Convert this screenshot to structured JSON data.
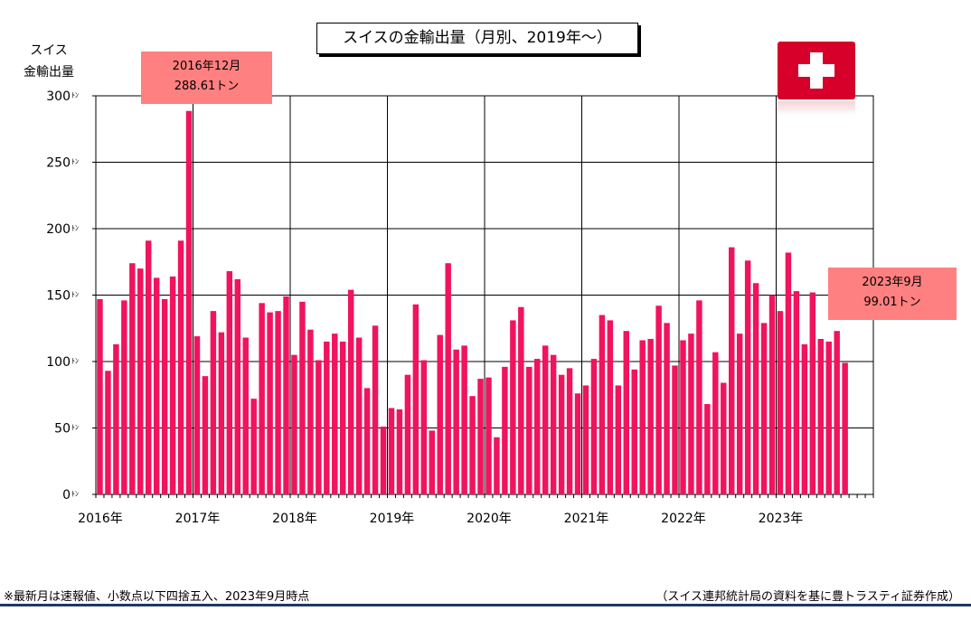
{
  "title": "スイスの金輸出量（月別、2019年～）",
  "ylabel_lines": [
    "スイス",
    "金輸出量"
  ],
  "callouts": {
    "left": {
      "line1": "2016年12月",
      "line2": "288.61トン"
    },
    "right": {
      "line1": "2023年9月",
      "line2": "99.01トン"
    }
  },
  "flag_icon": "swiss-flag-icon",
  "footnote": "※最新月は速報値、小数点以下四捨五入、2023年9月時点",
  "source": "（スイス連邦統計局の資料を基に豊トラスティ証券作成）",
  "colors": {
    "bar": "#f0135d",
    "callout": "#ff8080",
    "flag": "#d6002a",
    "bottom_line": "#1f3864"
  },
  "chart_data": {
    "type": "bar",
    "title": "スイスの金輸出量（月別、2019年～）",
    "ylabel": "スイス 金輸出量",
    "ylim": [
      0,
      300
    ],
    "y_ticks": [
      0,
      50,
      100,
      150,
      200,
      250,
      300
    ],
    "y_tick_labels": [
      "0ﾄﾝ",
      "50ﾄﾝ",
      "100ﾄﾝ",
      "150ﾄﾝ",
      "200ﾄﾝ",
      "250ﾄﾝ",
      "300ﾄﾝ"
    ],
    "x_tick_labels": [
      "2016年",
      "2017年",
      "2018年",
      "2019年",
      "2020年",
      "2021年",
      "2022年",
      "2023年"
    ],
    "start": "2016-01",
    "end": "2023-09",
    "grid": true,
    "values": [
      147,
      93,
      113,
      146,
      174,
      170,
      191,
      163,
      147,
      164,
      191,
      288.61,
      119,
      89,
      138,
      122,
      168,
      162,
      118,
      72,
      144,
      137,
      138,
      149,
      105,
      145,
      124,
      101,
      115,
      121,
      115,
      154,
      118,
      80,
      127,
      51,
      65,
      64,
      90,
      143,
      101,
      48,
      120,
      174,
      109,
      112,
      74,
      87,
      88,
      43,
      96,
      131,
      141,
      96,
      102,
      112,
      105,
      90,
      95,
      76,
      82,
      102,
      135,
      131,
      82,
      123,
      94,
      116,
      117,
      142,
      129,
      97,
      116,
      121,
      146,
      68,
      107,
      84,
      186,
      121,
      176,
      159,
      129,
      150,
      138,
      182,
      153,
      113,
      152,
      117,
      115,
      123,
      99.01
    ]
  }
}
